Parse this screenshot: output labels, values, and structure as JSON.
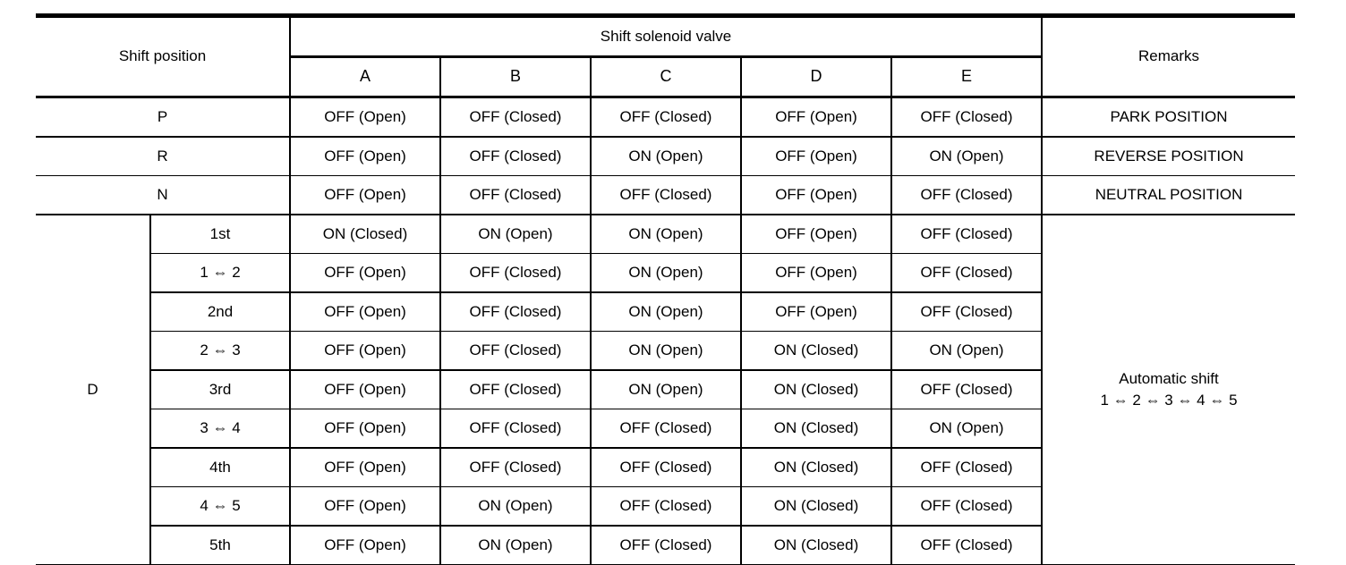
{
  "table": {
    "header": {
      "shift_position": "Shift position",
      "solenoid_group": "Shift solenoid valve",
      "solenoid_columns": [
        "A",
        "B",
        "C",
        "D",
        "E"
      ],
      "remarks": "Remarks"
    },
    "rows": [
      {
        "position": "P",
        "values": [
          "OFF (Open)",
          "OFF (Closed)",
          "OFF (Closed)",
          "OFF (Open)",
          "OFF (Closed)"
        ],
        "remarks": "PARK POSITION"
      },
      {
        "position": "R",
        "values": [
          "OFF (Open)",
          "OFF (Closed)",
          "ON (Open)",
          "OFF (Open)",
          "ON (Open)"
        ],
        "remarks": "REVERSE POSITION"
      },
      {
        "position": "N",
        "values": [
          "OFF (Open)",
          "OFF (Closed)",
          "OFF (Closed)",
          "OFF (Open)",
          "OFF (Closed)"
        ],
        "remarks": "NEUTRAL POSITION"
      }
    ],
    "d_block": {
      "position": "D",
      "remarks_line1": "Automatic shift",
      "remarks_line2": "1 ⇔ 2 ⇔ 3 ⇔ 4 ⇔ 5",
      "rows": [
        {
          "gear": "1st",
          "transition": false,
          "values": [
            "ON (Closed)",
            "ON (Open)",
            "ON (Open)",
            "OFF (Open)",
            "OFF (Closed)"
          ]
        },
        {
          "gear": "1 ⇔ 2",
          "transition": true,
          "values": [
            "OFF (Open)",
            "OFF (Closed)",
            "ON (Open)",
            "OFF (Open)",
            "OFF (Closed)"
          ]
        },
        {
          "gear": "2nd",
          "transition": false,
          "values": [
            "OFF (Open)",
            "OFF (Closed)",
            "ON (Open)",
            "OFF (Open)",
            "OFF (Closed)"
          ]
        },
        {
          "gear": "2 ⇔ 3",
          "transition": true,
          "values": [
            "OFF (Open)",
            "OFF (Closed)",
            "ON (Open)",
            "ON (Closed)",
            "ON (Open)"
          ]
        },
        {
          "gear": "3rd",
          "transition": false,
          "values": [
            "OFF (Open)",
            "OFF (Closed)",
            "ON (Open)",
            "ON (Closed)",
            "OFF (Closed)"
          ]
        },
        {
          "gear": "3 ⇔ 4",
          "transition": true,
          "values": [
            "OFF (Open)",
            "OFF (Closed)",
            "OFF (Closed)",
            "ON (Closed)",
            "ON (Open)"
          ]
        },
        {
          "gear": "4th",
          "transition": false,
          "values": [
            "OFF (Open)",
            "OFF (Closed)",
            "OFF (Closed)",
            "ON (Closed)",
            "OFF (Closed)"
          ]
        },
        {
          "gear": "4 ⇔ 5",
          "transition": true,
          "values": [
            "OFF (Open)",
            "ON (Open)",
            "OFF (Closed)",
            "ON (Closed)",
            "OFF (Closed)"
          ]
        },
        {
          "gear": "5th",
          "transition": false,
          "values": [
            "OFF (Open)",
            "ON (Open)",
            "OFF (Closed)",
            "ON (Closed)",
            "OFF (Closed)"
          ]
        }
      ]
    }
  }
}
